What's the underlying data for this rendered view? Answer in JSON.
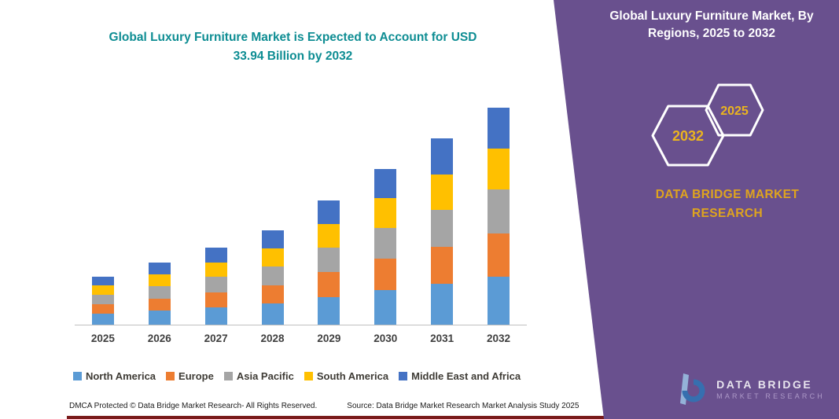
{
  "chart_data": {
    "type": "bar",
    "stacked": true,
    "title": "Global Luxury Furniture Market is Expected to Account for USD 33.94 Billion by 2032",
    "categories": [
      "2025",
      "2026",
      "2027",
      "2028",
      "2029",
      "2030",
      "2031",
      "2032"
    ],
    "series": [
      {
        "name": "North America",
        "color": "#5B9BD5",
        "values": [
          1.7,
          2.2,
          2.7,
          3.3,
          4.3,
          5.4,
          6.4,
          7.5
        ]
      },
      {
        "name": "Europe",
        "color": "#ED7D31",
        "values": [
          1.5,
          1.9,
          2.4,
          2.9,
          3.9,
          4.9,
          5.8,
          6.8
        ]
      },
      {
        "name": "Asia Pacific",
        "color": "#A5A5A5",
        "values": [
          1.5,
          1.9,
          2.4,
          2.9,
          3.9,
          4.9,
          5.8,
          6.8
        ]
      },
      {
        "name": "South America",
        "color": "#FFC000",
        "values": [
          1.4,
          1.85,
          2.25,
          2.8,
          3.65,
          4.6,
          5.5,
          6.4
        ]
      },
      {
        "name": "Middle East and Africa",
        "color": "#4472C4",
        "values": [
          1.4,
          1.85,
          2.25,
          2.8,
          3.65,
          4.6,
          5.6,
          6.44
        ]
      }
    ],
    "ylim": [
      0,
      34
    ],
    "grid": false,
    "legend_position": "bottom"
  },
  "main": {
    "title_line1": "Global Luxury Furniture Market is Expected to Account for USD",
    "title_line2": "33.94 Billion by 2032",
    "footer_left": "DMCA Protected © Data Bridge Market Research-  All Rights Reserved.",
    "footer_right": "Source: Data Bridge Market Research  Market Analysis Study 2025"
  },
  "side_panel": {
    "title": "Global Luxury Furniture Market, By Regions, 2025 to 2032",
    "hexagons": [
      "2032",
      "2025"
    ],
    "brand_line1": "DATA BRIDGE MARKET",
    "brand_line2": "RESEARCH",
    "logo_text1": "DATA  BRIDGE",
    "logo_text2": "MARKET RESEARCH",
    "colors": {
      "panel": "#69508E",
      "accent_gold": "#EBB41F",
      "bottom_bar": "#7A1B1B",
      "title_teal": "#0E8D93"
    }
  }
}
